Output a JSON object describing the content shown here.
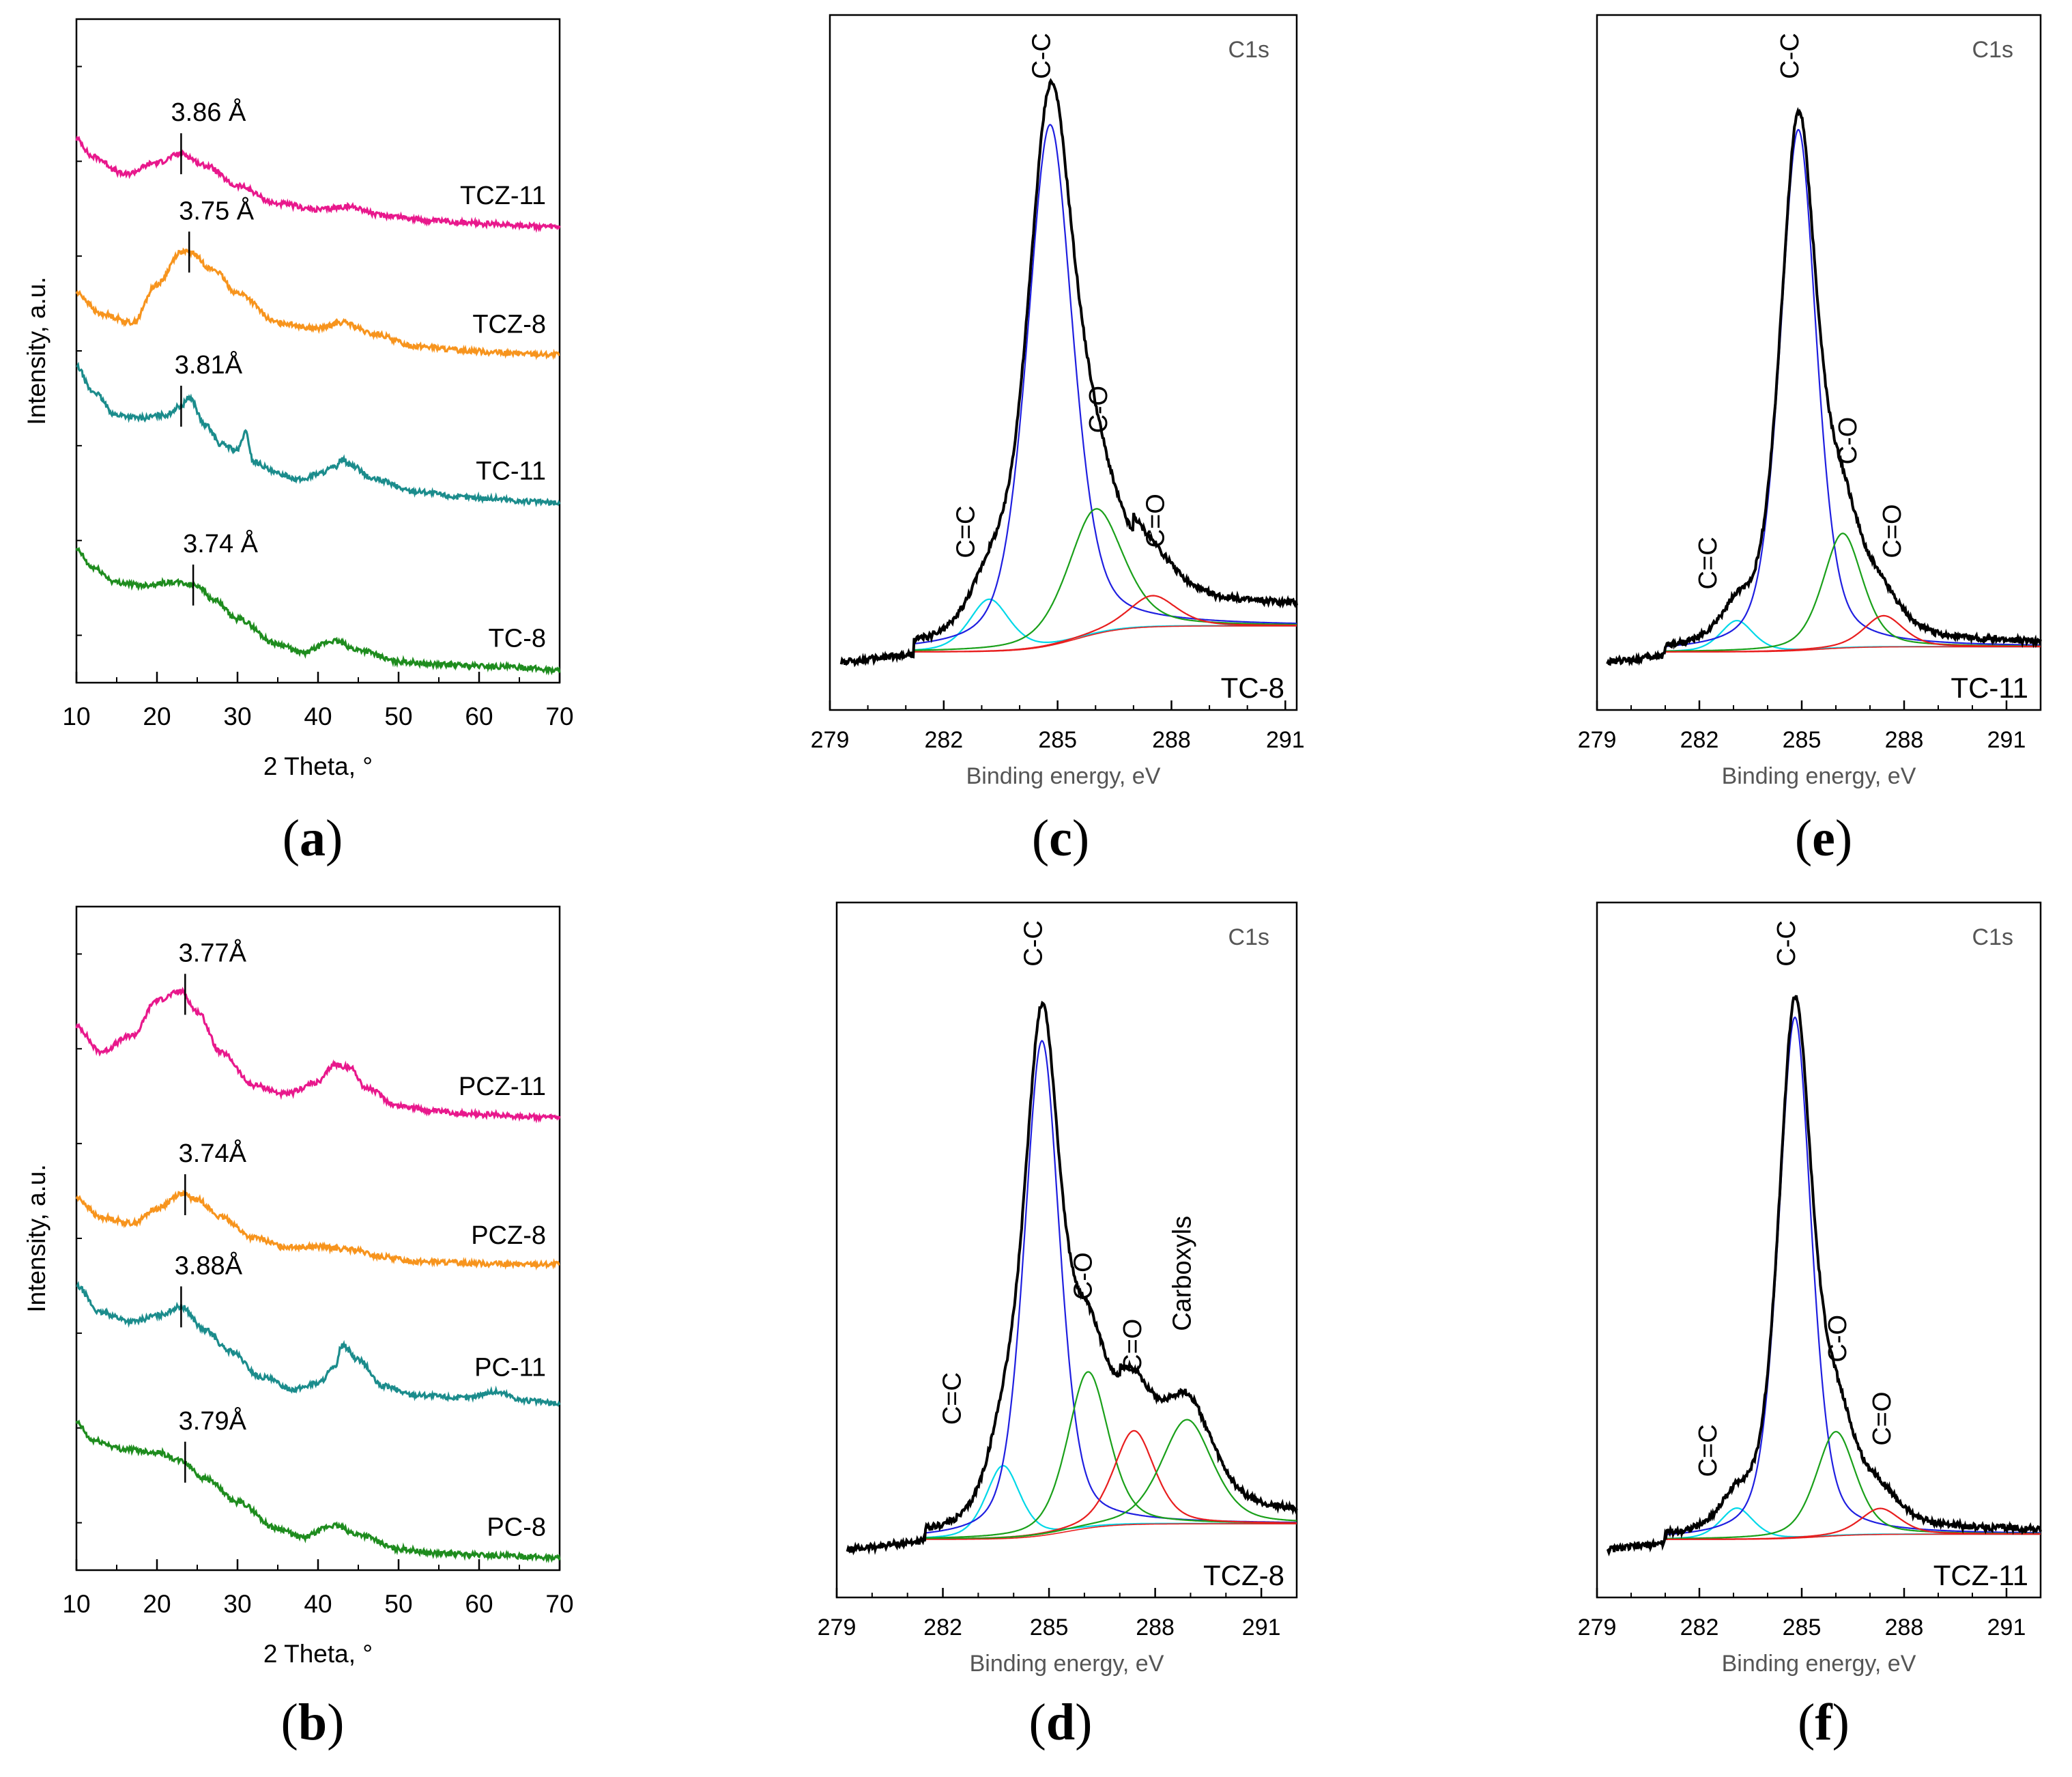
{
  "colors": {
    "magenta": "#E8188C",
    "orange": "#F7941D",
    "teal": "#1B8C8C",
    "green": "#1E8C1E",
    "black": "#000000",
    "blue": "#1F1FE0",
    "cyan": "#00D8E8",
    "fitgreen": "#1AA01A",
    "red": "#E81E1E"
  },
  "captions": {
    "a": {
      "open": "(",
      "letter": "a",
      "close": ")"
    },
    "b": {
      "open": "(",
      "letter": "b",
      "close": ")"
    },
    "c": {
      "open": "(",
      "letter": "c",
      "close": ")"
    },
    "d": {
      "open": "(",
      "letter": "d",
      "close": ")"
    },
    "e": {
      "open": "(",
      "letter": "e",
      "close": ")"
    },
    "f": {
      "open": "(",
      "letter": "f",
      "close": ")"
    }
  },
  "chart_data": [
    {
      "id": "a",
      "type": "line",
      "title": "",
      "xlabel": "2 Theta, °",
      "ylabel": "Intensity, a.u.",
      "xlim": [
        10,
        70
      ],
      "xticks": [
        "10",
        "20",
        "30",
        "40",
        "50",
        "60",
        "70"
      ],
      "series": [
        {
          "name": "TCZ-11",
          "color": "magenta",
          "offset": 3.0,
          "x": [
            10,
            12,
            16,
            20,
            23,
            26,
            30,
            35,
            40,
            44,
            48,
            55,
            62,
            70
          ],
          "y": [
            0.62,
            0.5,
            0.38,
            0.46,
            0.52,
            0.44,
            0.3,
            0.18,
            0.14,
            0.16,
            0.1,
            0.06,
            0.04,
            0.02
          ],
          "peak": {
            "x": 23,
            "label": "3.86 Å"
          }
        },
        {
          "name": "TCZ-8",
          "color": "orange",
          "offset": 2.15,
          "x": [
            10,
            13,
            17,
            20,
            23,
            24,
            27,
            30,
            35,
            40,
            43,
            47,
            52,
            58,
            64,
            70
          ],
          "y": [
            0.42,
            0.28,
            0.22,
            0.48,
            0.7,
            0.7,
            0.58,
            0.42,
            0.22,
            0.18,
            0.22,
            0.14,
            0.06,
            0.03,
            0.01,
            0.0
          ],
          "peak": {
            "x": 24,
            "label": "3.75 Å"
          }
        },
        {
          "name": "TC-11",
          "color": "teal",
          "offset": 1.12,
          "x": [
            10,
            12,
            15,
            18,
            21,
            23,
            24,
            26,
            28,
            30,
            31,
            32,
            35,
            38,
            40,
            42,
            43,
            44,
            47,
            52,
            58,
            62,
            66,
            70
          ],
          "y": [
            0.95,
            0.78,
            0.62,
            0.6,
            0.62,
            0.68,
            0.74,
            0.55,
            0.42,
            0.38,
            0.5,
            0.3,
            0.22,
            0.18,
            0.22,
            0.26,
            0.32,
            0.28,
            0.18,
            0.1,
            0.06,
            0.05,
            0.03,
            0.02
          ],
          "peak": {
            "x": 23,
            "label": "3.81Å"
          }
        },
        {
          "name": "TC-8",
          "color": "green",
          "offset": 0.0,
          "x": [
            10,
            12,
            15,
            18,
            22,
            25,
            27,
            30,
            35,
            38,
            42,
            45,
            50,
            55,
            60,
            65,
            70
          ],
          "y": [
            0.82,
            0.7,
            0.6,
            0.58,
            0.6,
            0.58,
            0.48,
            0.35,
            0.18,
            0.12,
            0.2,
            0.14,
            0.06,
            0.04,
            0.03,
            0.02,
            0.0
          ],
          "peak": {
            "x": 24.5,
            "label": "3.74 Å"
          }
        }
      ]
    },
    {
      "id": "b",
      "type": "line",
      "title": "",
      "xlabel": "2 Theta, °",
      "ylabel": "Intensity, a.u.",
      "xlim": [
        10,
        70
      ],
      "xticks": [
        "10",
        "20",
        "30",
        "40",
        "50",
        "60",
        "70"
      ],
      "series": [
        {
          "name": "PCZ-11",
          "color": "magenta",
          "offset": 3.0,
          "x": [
            10,
            13,
            17,
            20,
            23,
            25,
            28,
            32,
            36,
            40,
            42,
            44,
            46,
            50,
            55,
            60,
            70
          ],
          "y": [
            0.62,
            0.45,
            0.56,
            0.8,
            0.86,
            0.72,
            0.44,
            0.22,
            0.16,
            0.24,
            0.36,
            0.34,
            0.2,
            0.08,
            0.04,
            0.02,
            0.0
          ],
          "peak": {
            "x": 23.5,
            "label": "3.77Å"
          }
        },
        {
          "name": "PCZ-8",
          "color": "orange",
          "offset": 2.0,
          "x": [
            10,
            13,
            17,
            20,
            23,
            25,
            28,
            32,
            36,
            40,
            44,
            48,
            52,
            58,
            64,
            70
          ],
          "y": [
            0.45,
            0.32,
            0.28,
            0.38,
            0.48,
            0.44,
            0.32,
            0.18,
            0.12,
            0.12,
            0.1,
            0.05,
            0.02,
            0.01,
            0.0,
            0.0
          ],
          "peak": {
            "x": 23.5,
            "label": "3.74Å"
          }
        },
        {
          "name": "PC-11",
          "color": "teal",
          "offset": 1.05,
          "x": [
            10,
            13,
            17,
            20,
            23,
            26,
            29,
            33,
            37,
            40,
            42,
            43,
            45,
            48,
            52,
            58,
            62,
            66,
            70
          ],
          "y": [
            0.8,
            0.62,
            0.56,
            0.6,
            0.66,
            0.5,
            0.36,
            0.18,
            0.1,
            0.14,
            0.24,
            0.4,
            0.3,
            0.12,
            0.06,
            0.04,
            0.08,
            0.02,
            0.0
          ],
          "peak": {
            "x": 23,
            "label": "3.88Å"
          }
        },
        {
          "name": "PC-8",
          "color": "green",
          "offset": 0.0,
          "x": [
            10,
            12,
            16,
            20,
            23,
            26,
            30,
            35,
            38,
            42,
            45,
            50,
            55,
            60,
            65,
            70
          ],
          "y": [
            0.92,
            0.8,
            0.74,
            0.72,
            0.66,
            0.54,
            0.38,
            0.2,
            0.14,
            0.22,
            0.16,
            0.06,
            0.03,
            0.02,
            0.01,
            0.0
          ],
          "peak": {
            "x": 23.5,
            "label": "3.79Å"
          }
        }
      ]
    },
    {
      "id": "c",
      "type": "line",
      "xlabel": "Binding energy, eV",
      "xlim": [
        279,
        291.3
      ],
      "xticks": [
        "279",
        "282",
        "285",
        "288",
        "291"
      ],
      "corner_label": "C1s",
      "sample": "TC-8",
      "baseline": 0.05,
      "envelope_tail": 0.12,
      "envelope_start": 281.2,
      "components": [
        {
          "name": "C=C",
          "color": "cyan",
          "center": 283.2,
          "amp": 0.1,
          "width": 0.55
        },
        {
          "name": "C-C",
          "color": "blue",
          "center": 284.8,
          "amp": 1.0,
          "width": 0.62
        },
        {
          "name": "C-O",
          "color": "fitgreen",
          "center": 286.0,
          "amp": 0.24,
          "width": 0.75
        },
        {
          "name": "C=O",
          "color": "red",
          "center": 287.5,
          "amp": 0.06,
          "width": 0.65
        }
      ],
      "labels": [
        {
          "text": "C-C",
          "x": 284.8,
          "y": 1.1
        },
        {
          "text": "C-O",
          "x": 286.3,
          "y": 0.42
        },
        {
          "text": "C=O",
          "x": 287.8,
          "y": 0.2
        },
        {
          "text": "C=C",
          "x": 282.8,
          "y": 0.18
        }
      ]
    },
    {
      "id": "d",
      "type": "line",
      "xlabel": "Binding energy, eV",
      "xlim": [
        279,
        292
      ],
      "xticks": [
        "279",
        "282",
        "285",
        "288",
        "291"
      ],
      "corner_label": "C1s",
      "sample": "TCZ-8",
      "baseline": 0.03,
      "envelope_tail": 0.06,
      "envelope_start": 281.5,
      "components": [
        {
          "name": "C=C",
          "color": "cyan",
          "center": 283.7,
          "amp": 0.14,
          "width": 0.5
        },
        {
          "name": "C-C",
          "color": "blue",
          "center": 284.8,
          "amp": 0.95,
          "width": 0.52
        },
        {
          "name": "C-O",
          "color": "fitgreen",
          "center": 286.1,
          "amp": 0.3,
          "width": 0.6
        },
        {
          "name": "C=O",
          "color": "red",
          "center": 287.4,
          "amp": 0.18,
          "width": 0.6
        },
        {
          "name": "Carboxyls",
          "color": "fitgreen",
          "center": 288.9,
          "amp": 0.2,
          "width": 0.75
        }
      ],
      "labels": [
        {
          "text": "C-C",
          "x": 284.8,
          "y": 1.1
        },
        {
          "text": "C-O",
          "x": 286.2,
          "y": 0.46
        },
        {
          "text": "C=O",
          "x": 287.6,
          "y": 0.32
        },
        {
          "text": "Carboxyls",
          "x": 289.0,
          "y": 0.4
        },
        {
          "text": "C=C",
          "x": 282.5,
          "y": 0.22
        }
      ]
    },
    {
      "id": "e",
      "type": "line",
      "xlabel": "Binding energy, eV",
      "xlim": [
        279,
        292
      ],
      "xticks": [
        "279",
        "282",
        "285",
        "288",
        "291"
      ],
      "corner_label": "C1s",
      "sample": "TC-11",
      "baseline": 0.01,
      "envelope_tail": 0.02,
      "envelope_start": 281.0,
      "components": [
        {
          "name": "C=C",
          "color": "cyan",
          "center": 283.1,
          "amp": 0.06,
          "width": 0.5
        },
        {
          "name": "C-C",
          "color": "blue",
          "center": 284.9,
          "amp": 1.0,
          "width": 0.55
        },
        {
          "name": "C-O",
          "color": "fitgreen",
          "center": 286.2,
          "amp": 0.22,
          "width": 0.6
        },
        {
          "name": "C=O",
          "color": "red",
          "center": 287.4,
          "amp": 0.06,
          "width": 0.6
        }
      ],
      "labels": [
        {
          "text": "C-C",
          "x": 284.9,
          "y": 1.1
        },
        {
          "text": "C-O",
          "x": 286.6,
          "y": 0.36
        },
        {
          "text": "C=O",
          "x": 287.9,
          "y": 0.18
        },
        {
          "text": "C=C",
          "x": 282.5,
          "y": 0.12
        }
      ]
    },
    {
      "id": "f",
      "type": "line",
      "xlabel": "Binding energy, eV",
      "xlim": [
        279,
        292
      ],
      "xticks": [
        "279",
        "282",
        "285",
        "288",
        "291"
      ],
      "corner_label": "C1s",
      "sample": "TCZ-11",
      "baseline": 0.01,
      "envelope_tail": 0.02,
      "envelope_start": 281.0,
      "components": [
        {
          "name": "C=C",
          "color": "cyan",
          "center": 283.1,
          "amp": 0.06,
          "width": 0.5
        },
        {
          "name": "C-C",
          "color": "blue",
          "center": 284.8,
          "amp": 1.0,
          "width": 0.5
        },
        {
          "name": "C-O",
          "color": "fitgreen",
          "center": 286.0,
          "amp": 0.2,
          "width": 0.6
        },
        {
          "name": "C=O",
          "color": "red",
          "center": 287.3,
          "amp": 0.05,
          "width": 0.6
        }
      ],
      "labels": [
        {
          "text": "C-C",
          "x": 284.8,
          "y": 1.1
        },
        {
          "text": "C-O",
          "x": 286.3,
          "y": 0.34
        },
        {
          "text": "C=O",
          "x": 287.6,
          "y": 0.18
        },
        {
          "text": "C=C",
          "x": 282.5,
          "y": 0.12
        }
      ]
    }
  ]
}
